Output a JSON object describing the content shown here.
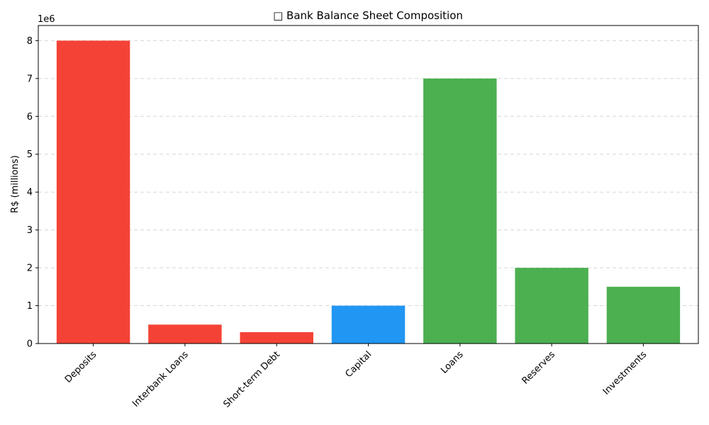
{
  "chart_data": {
    "type": "bar",
    "title": "□ Bank Balance Sheet Composition",
    "xlabel": "",
    "ylabel": "R$ (millions)",
    "offset_text": "1e6",
    "categories": [
      "Deposits",
      "Interbank Loans",
      "Short-term Debt",
      "Capital",
      "Loans",
      "Reserves",
      "Investments"
    ],
    "values": [
      8000000,
      500000,
      300000,
      1000000,
      7000000,
      2000000,
      1500000
    ],
    "colors": [
      "#f44336",
      "#f44336",
      "#f44336",
      "#2196f3",
      "#4caf50",
      "#4caf50",
      "#4caf50"
    ],
    "ylim": [
      0,
      8400000
    ],
    "yticks": [
      0,
      1000000,
      2000000,
      3000000,
      4000000,
      5000000,
      6000000,
      7000000,
      8000000
    ],
    "ytick_labels": [
      "0",
      "1",
      "2",
      "3",
      "4",
      "5",
      "6",
      "7",
      "8"
    ],
    "grid": "y-dashed",
    "legend": "none"
  }
}
